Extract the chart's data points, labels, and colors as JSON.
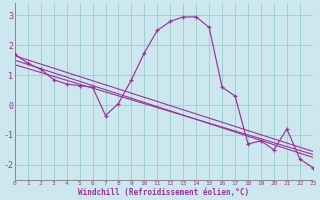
{
  "bg_color": "#cce8ee",
  "line_color": "#993399",
  "grid_color": "#99cccc",
  "xlabel": "Windchill (Refroidissement éolien,°C)",
  "yticks": [
    -2,
    -1,
    0,
    1,
    2,
    3
  ],
  "xlim": [
    0,
    23
  ],
  "ylim": [
    -2.5,
    3.4
  ],
  "main_x": [
    0,
    1,
    2,
    3,
    4,
    5,
    6,
    7,
    8,
    9,
    10,
    11,
    12,
    13,
    14,
    15,
    16,
    17,
    18,
    19,
    20,
    21,
    22,
    23
  ],
  "main_y": [
    1.7,
    1.4,
    1.2,
    0.85,
    0.7,
    0.65,
    0.6,
    -0.35,
    0.05,
    0.85,
    1.75,
    2.5,
    2.8,
    2.95,
    2.95,
    2.6,
    0.6,
    0.3,
    -1.3,
    -1.2,
    -1.5,
    -0.8,
    -1.8,
    -2.1
  ],
  "reg_lines": [
    [
      [
        0,
        23
      ],
      [
        1.65,
        -1.55
      ]
    ],
    [
      [
        0,
        23
      ],
      [
        1.5,
        -1.75
      ]
    ],
    [
      [
        0,
        23
      ],
      [
        1.35,
        -1.65
      ]
    ]
  ],
  "xtick_labels": [
    "0",
    "1",
    "2",
    "3",
    "4",
    "5",
    "6",
    "7",
    "8",
    "9",
    "10",
    "11",
    "12",
    "13",
    "14",
    "15",
    "16",
    "17",
    "18",
    "19",
    "20",
    "21",
    "22",
    "23"
  ]
}
